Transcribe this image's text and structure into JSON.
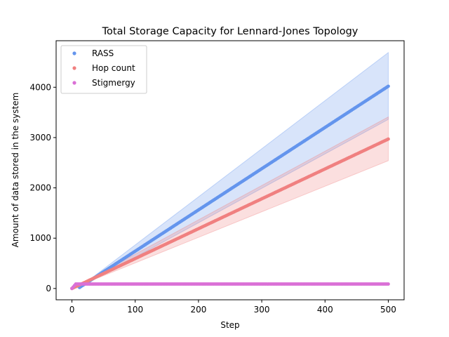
{
  "chart_data": {
    "type": "scatter",
    "title": "Total Storage Capacity for Lennard-Jones Topology",
    "xlabel": "Step",
    "ylabel": "Amount of data stored in the system",
    "xlim": [
      -25,
      525
    ],
    "ylim": [
      -225,
      4925
    ],
    "xticks": [
      0,
      100,
      200,
      300,
      400,
      500
    ],
    "yticks": [
      0,
      1000,
      2000,
      3000,
      4000
    ],
    "grid": false,
    "legend_position": "top-left",
    "series": [
      {
        "name": "RASS",
        "color": "#6495ED",
        "band_color": "#6495ED",
        "start_step": 12,
        "step_every": 2,
        "end_step": 500,
        "mean_points": [
          [
            0,
            0
          ],
          [
            12,
            20
          ],
          [
            500,
            4020
          ]
        ],
        "lower_points": [
          [
            0,
            0
          ],
          [
            12,
            18
          ],
          [
            500,
            3360
          ]
        ],
        "upper_points": [
          [
            0,
            0
          ],
          [
            12,
            24
          ],
          [
            500,
            4690
          ]
        ]
      },
      {
        "name": "Hop count",
        "color": "#F08080",
        "band_color": "#F08080",
        "start_step": 0,
        "step_every": 2,
        "end_step": 500,
        "mean_points": [
          [
            0,
            0
          ],
          [
            500,
            2970
          ]
        ],
        "lower_points": [
          [
            0,
            0
          ],
          [
            500,
            2540
          ]
        ],
        "upper_points": [
          [
            0,
            0
          ],
          [
            500,
            3410
          ]
        ]
      },
      {
        "name": "Stigmergy",
        "color": "#DA70D6",
        "start_step": 0,
        "step_every": 2,
        "end_step": 500,
        "mean_points": [
          [
            0,
            0
          ],
          [
            6,
            88
          ],
          [
            500,
            88
          ]
        ]
      }
    ]
  }
}
